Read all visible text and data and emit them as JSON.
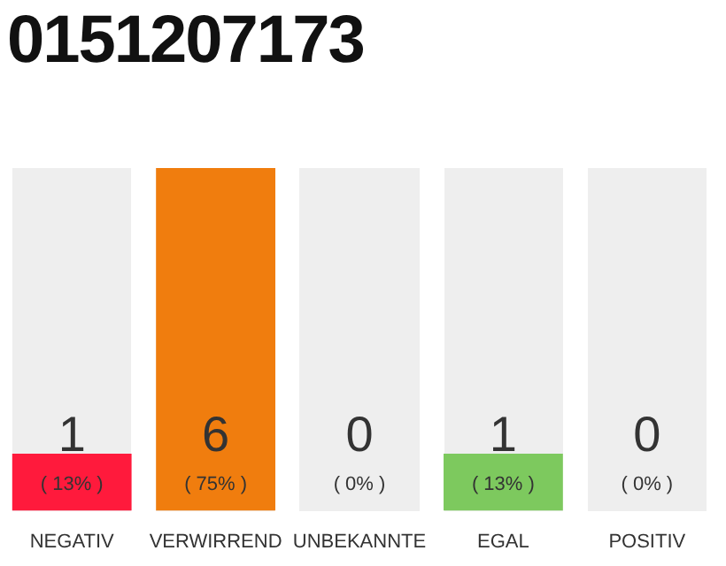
{
  "chart_data": {
    "type": "bar",
    "title": "0151207173",
    "categories": [
      "NEGATIV",
      "VERWIRREND",
      "UNBEKANNTE",
      "EGAL",
      "POSITIV"
    ],
    "values": [
      1,
      6,
      0,
      1,
      0
    ],
    "value_labels": [
      "1",
      "6",
      "0",
      "1",
      "0"
    ],
    "colors": [
      "#ff1a3c",
      "#f07d0e",
      "#eeeeee",
      "#7dc95e",
      "#eeeeee"
    ],
    "annotations": [
      {
        "text": "( 13% )",
        "x": "NEGATIV",
        "y": 0
      },
      {
        "text": "( 75% )",
        "x": "VERWIRREND",
        "y": 0
      },
      {
        "text": "( 0% )",
        "x": "UNBEKANNTE",
        "y": 0
      },
      {
        "text": "( 13% )",
        "x": "EGAL",
        "y": 0
      },
      {
        "text": "( 0% )",
        "x": "POSITIV",
        "y": 0
      }
    ]
  }
}
